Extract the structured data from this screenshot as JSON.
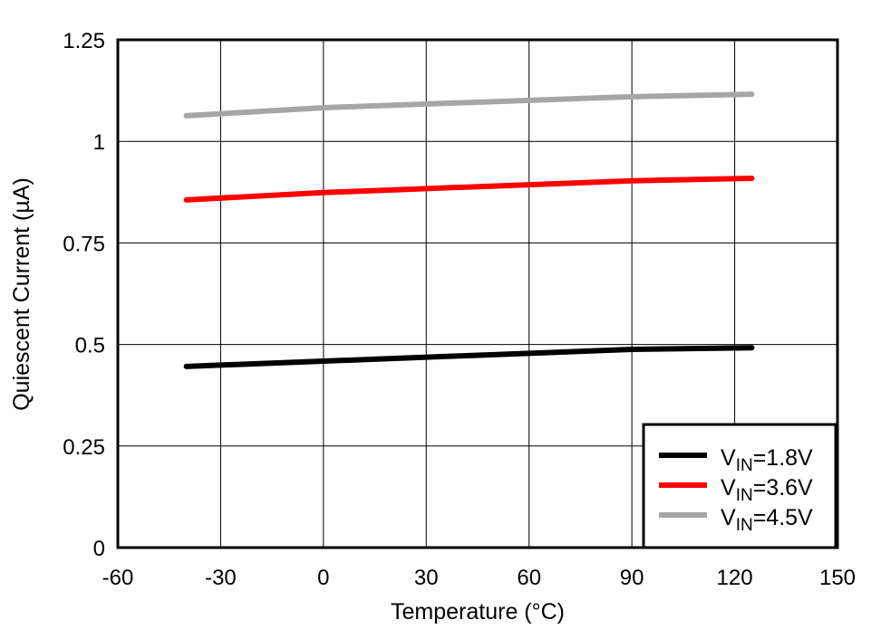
{
  "chart_data": {
    "type": "line",
    "title": "",
    "xlabel": "Temperature (°C)",
    "ylabel": "Quiescent Current (µA)",
    "xlim": [
      -60,
      150
    ],
    "ylim": [
      0,
      1.25
    ],
    "xticks": [
      -60,
      -30,
      0,
      30,
      60,
      90,
      120,
      150
    ],
    "yticks": [
      0,
      0.25,
      0.5,
      0.75,
      1,
      1.25
    ],
    "xtick_labels": [
      "-60",
      "-30",
      "0",
      "30",
      "60",
      "90",
      "120",
      "150"
    ],
    "ytick_labels": [
      "0",
      "0.25",
      "0.5",
      "0.75",
      "1",
      "1.25"
    ],
    "grid": true,
    "legend_position": "bottom-right",
    "series": [
      {
        "name": "VIN=1.8V",
        "name_main": "V",
        "name_sub": "IN",
        "name_rest": "=1.8V",
        "color": "#000000",
        "x": [
          -40,
          0,
          90,
          125
        ],
        "y": [
          0.446,
          0.459,
          0.488,
          0.492
        ]
      },
      {
        "name": "VIN=3.6V",
        "name_main": "V",
        "name_sub": "IN",
        "name_rest": "=3.6V",
        "color": "#ff0000",
        "x": [
          -40,
          0,
          90,
          125
        ],
        "y": [
          0.856,
          0.874,
          0.903,
          0.909
        ]
      },
      {
        "name": "VIN=4.5V",
        "name_main": "V",
        "name_sub": "IN",
        "name_rest": "=4.5V",
        "color": "#a6a6a6",
        "x": [
          -40,
          0,
          90,
          125
        ],
        "y": [
          1.063,
          1.083,
          1.11,
          1.116
        ]
      }
    ]
  }
}
